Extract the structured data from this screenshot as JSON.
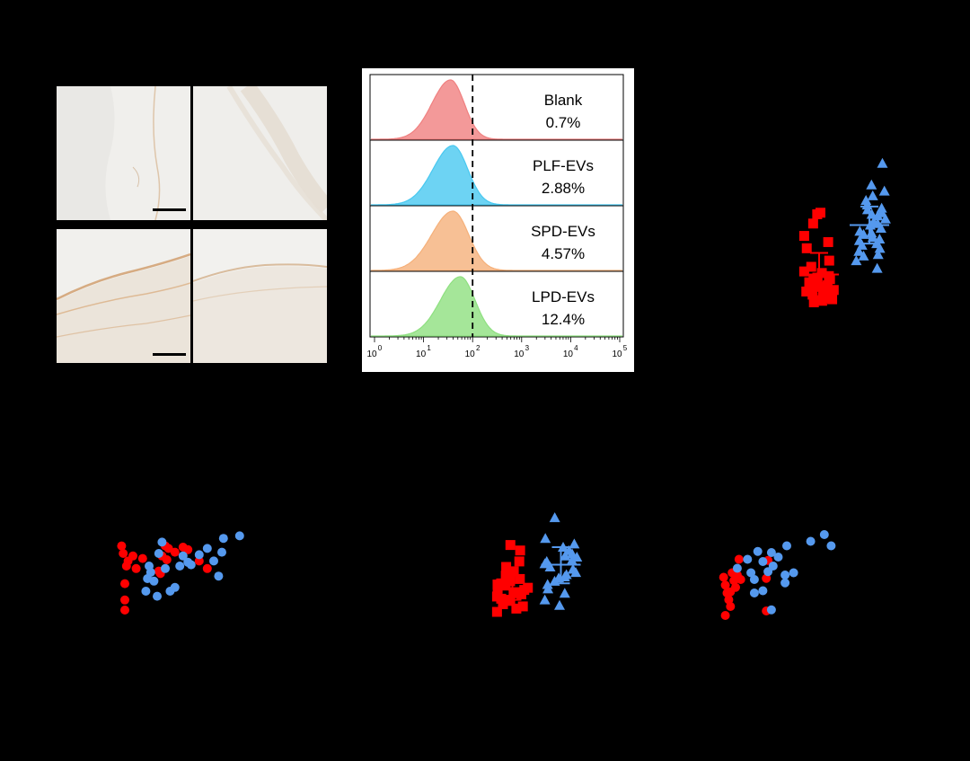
{
  "colors": {
    "background": "#000000",
    "group_a": "#ff0000",
    "group_b": "#5599ee",
    "blank": "#f08080",
    "plf": "#48c8f0",
    "spd": "#f5b07a",
    "lpd": "#8ee080",
    "tissue_light": "#ecebe8",
    "tissue_stained": "#d9a070"
  },
  "flow": {
    "threshold_exp": 2,
    "axis": {
      "type": "log10",
      "min_exp": 0,
      "max_exp": 5,
      "tick_base": "10",
      "tick_exponents": [
        "0",
        "1",
        "2",
        "3",
        "4",
        "5"
      ]
    },
    "histograms": [
      {
        "name": "Blank",
        "value": "0.7%",
        "color_key": "blank",
        "peak_exp": 1.55,
        "width": 0.28
      },
      {
        "name": "PLF-EVs",
        "value": "2.88%",
        "color_key": "plf",
        "peak_exp": 1.6,
        "width": 0.3
      },
      {
        "name": "SPD-EVs",
        "value": "4.57%",
        "color_key": "spd",
        "peak_exp": 1.6,
        "width": 0.32
      },
      {
        "name": "LPD-EVs",
        "value": "12.4%",
        "color_key": "lpd",
        "peak_exp": 1.75,
        "width": 0.3
      }
    ]
  },
  "chart_data": [
    {
      "type": "histogram",
      "x_scale": "log",
      "x_ticks": [
        "10^0",
        "10^1",
        "10^2",
        "10^3",
        "10^4",
        "10^5"
      ],
      "series": [
        {
          "name": "Blank",
          "percent": "0.7%"
        },
        {
          "name": "PLF-EVs",
          "percent": "2.88%"
        },
        {
          "name": "SPD-EVs",
          "percent": "4.57%"
        },
        {
          "name": "LPD-EVs",
          "percent": "12.4%"
        }
      ]
    },
    {
      "type": "scatter",
      "style": "dot-plot-with-mean-sd",
      "ylim": [
        0,
        10
      ],
      "groups": [
        {
          "color_key": "group_a",
          "marker": "square",
          "values": [
            1.1,
            1.4,
            1.6,
            1.8,
            2.0,
            2.2,
            2.4,
            2.6,
            0.9,
            1.2,
            1.5,
            1.7,
            1.9,
            2.1,
            2.3,
            2.5,
            2.8,
            3.2,
            3.6,
            4.4,
            4.8,
            5.2,
            6.0,
            6.6,
            6.7,
            1.0,
            1.3,
            1.6,
            2.0,
            2.4,
            2.9
          ],
          "mean": 2.7,
          "sd_low": 1.3,
          "sd_high": 4.1
        },
        {
          "color_key": "group_b",
          "marker": "triangle",
          "values": [
            3.1,
            3.6,
            3.9,
            4.2,
            4.4,
            4.7,
            4.9,
            5.1,
            5.3,
            5.5,
            5.7,
            5.9,
            6.1,
            6.3,
            6.5,
            6.7,
            6.9,
            7.2,
            7.5,
            7.8,
            8.1,
            8.5,
            9.9,
            4.0,
            5.0,
            6.0,
            4.6,
            5.4,
            6.6,
            7.0
          ],
          "mean": 5.9,
          "sd_low": 4.7,
          "sd_high": 7.1
        }
      ]
    },
    {
      "type": "scatter",
      "ylim": [
        0,
        10
      ],
      "xlim": [
        0,
        10
      ],
      "series": [
        {
          "color_key": "group_a",
          "points": [
            [
              0.4,
              6.0
            ],
            [
              0.6,
              5.0
            ],
            [
              1.0,
              5.8
            ],
            [
              1.2,
              4.8
            ],
            [
              0.5,
              3.6
            ],
            [
              0.3,
              6.6
            ],
            [
              0.7,
              5.4
            ],
            [
              0.5,
              2.3
            ],
            [
              0.5,
              1.5
            ],
            [
              1.6,
              5.6
            ],
            [
              2.6,
              4.6
            ],
            [
              2.8,
              5.8
            ],
            [
              3.0,
              6.6
            ],
            [
              3.2,
              6.4
            ],
            [
              3.6,
              6.1
            ],
            [
              4.1,
              6.5
            ],
            [
              4.4,
              6.3
            ],
            [
              5.1,
              5.4
            ],
            [
              5.6,
              4.8
            ],
            [
              2.7,
              4.4
            ],
            [
              3.1,
              5.5
            ]
          ]
        },
        {
          "color_key": "group_b",
          "points": [
            [
              1.8,
              3.0
            ],
            [
              1.9,
              4.0
            ],
            [
              2.0,
              5.0
            ],
            [
              2.1,
              4.5
            ],
            [
              2.3,
              3.8
            ],
            [
              2.5,
              2.6
            ],
            [
              2.6,
              6.0
            ],
            [
              2.8,
              6.9
            ],
            [
              3.0,
              4.8
            ],
            [
              3.3,
              3.0
            ],
            [
              3.6,
              3.3
            ],
            [
              3.9,
              5.0
            ],
            [
              4.1,
              5.8
            ],
            [
              4.4,
              5.3
            ],
            [
              4.6,
              5.1
            ],
            [
              5.1,
              5.9
            ],
            [
              5.6,
              6.4
            ],
            [
              6.0,
              5.4
            ],
            [
              6.3,
              4.2
            ],
            [
              6.6,
              7.2
            ],
            [
              7.6,
              7.4
            ],
            [
              6.5,
              6.1
            ]
          ]
        }
      ]
    },
    {
      "type": "scatter",
      "style": "dot-plot-with-mean-sd",
      "ylim": [
        0,
        10
      ],
      "groups": [
        {
          "color_key": "group_a",
          "marker": "square",
          "values": [
            1.2,
            1.6,
            1.9,
            2.1,
            2.3,
            2.5,
            2.7,
            2.9,
            3.1,
            3.3,
            3.5,
            3.7,
            3.9,
            4.2,
            4.6,
            5.0,
            5.5,
            6.5,
            7.0,
            1.4,
            2.0,
            2.6,
            3.0,
            3.4,
            0.9
          ],
          "mean": 3.0,
          "sd_low": 2.0,
          "sd_high": 4.2
        },
        {
          "color_key": "group_b",
          "marker": "triangle",
          "values": [
            1.5,
            2.0,
            2.6,
            3.0,
            3.4,
            3.7,
            4.0,
            4.3,
            4.5,
            4.8,
            5.0,
            5.3,
            5.6,
            5.9,
            6.2,
            6.5,
            6.8,
            7.1,
            7.6,
            9.5,
            4.1,
            5.5,
            6.0
          ],
          "mean": 5.2,
          "sd_low": 3.5,
          "sd_high": 6.8
        }
      ]
    },
    {
      "type": "scatter",
      "xlim": [
        0,
        10
      ],
      "ylim": [
        0,
        10
      ],
      "series": [
        {
          "color_key": "group_a",
          "points": [
            [
              0.3,
              4.2
            ],
            [
              0.4,
              3.5
            ],
            [
              0.5,
              2.8
            ],
            [
              0.6,
              2.2
            ],
            [
              0.7,
              1.6
            ],
            [
              0.4,
              0.8
            ],
            [
              0.9,
              3.9
            ],
            [
              1.1,
              4.4
            ],
            [
              1.0,
              3.3
            ],
            [
              1.2,
              5.8
            ],
            [
              0.7,
              2.9
            ],
            [
              1.3,
              4.0
            ],
            [
              0.8,
              4.6
            ],
            [
              2.9,
              5.7
            ],
            [
              2.8,
              4.1
            ],
            [
              2.8,
              1.2
            ]
          ]
        },
        {
          "color_key": "group_b",
          "points": [
            [
              1.1,
              5.0
            ],
            [
              1.7,
              5.8
            ],
            [
              1.9,
              4.6
            ],
            [
              2.1,
              4.0
            ],
            [
              2.3,
              6.5
            ],
            [
              2.6,
              5.6
            ],
            [
              2.9,
              4.7
            ],
            [
              3.1,
              6.4
            ],
            [
              3.2,
              5.2
            ],
            [
              3.5,
              6.0
            ],
            [
              3.9,
              4.4
            ],
            [
              4.4,
              4.6
            ],
            [
              4.0,
              7.0
            ],
            [
              5.4,
              7.4
            ],
            [
              6.2,
              8.0
            ],
            [
              6.6,
              7.0
            ],
            [
              2.1,
              2.8
            ],
            [
              2.6,
              3.0
            ],
            [
              3.1,
              1.3
            ],
            [
              3.9,
              3.7
            ]
          ]
        }
      ]
    }
  ]
}
